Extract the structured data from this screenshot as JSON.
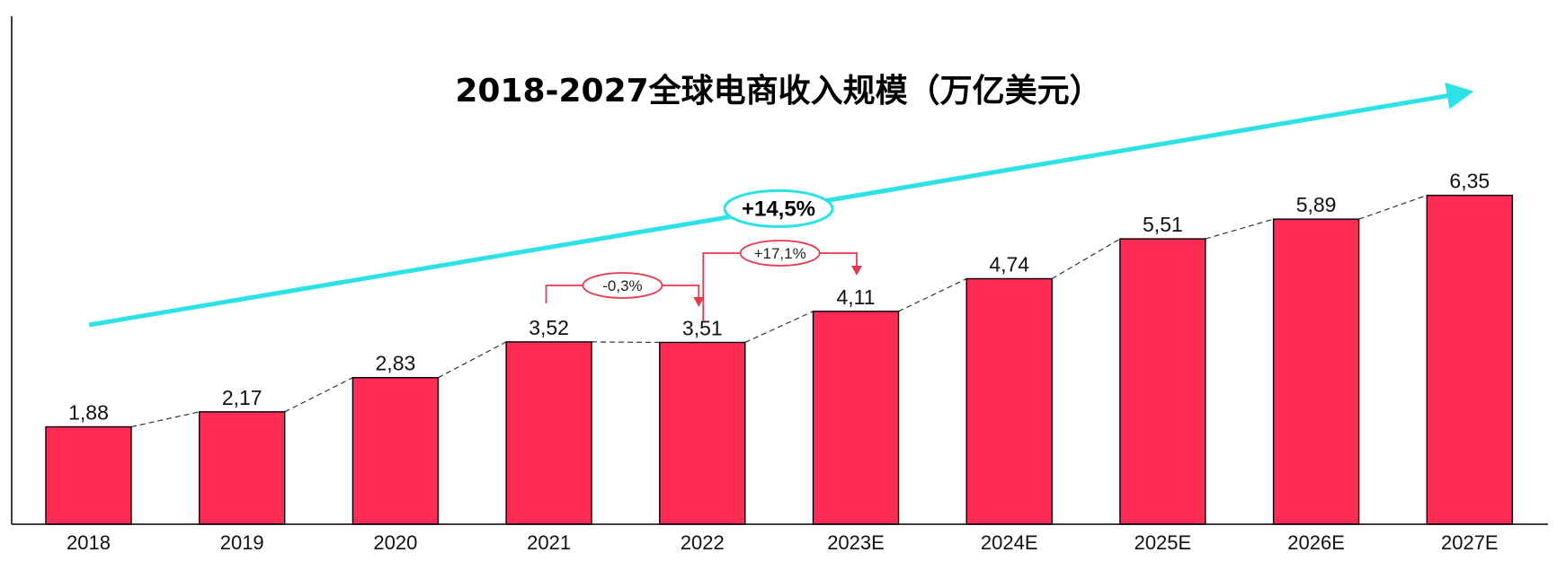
{
  "chart_data": {
    "type": "bar",
    "title": "2018-2027全球电商收入规模（万亿美元）",
    "categories": [
      "2018",
      "2019",
      "2020",
      "2021",
      "2022",
      "2023E",
      "2024E",
      "2025E",
      "2026E",
      "2027E"
    ],
    "values": [
      1.88,
      2.17,
      2.83,
      3.52,
      3.51,
      4.11,
      4.74,
      5.51,
      5.89,
      6.35
    ],
    "value_labels": [
      "1,88",
      "2,17",
      "2,83",
      "3,52",
      "3,51",
      "4,11",
      "4,74",
      "5,51",
      "5,89",
      "6,35"
    ],
    "xlabel": "",
    "ylabel": "",
    "ylim": [
      0,
      7
    ],
    "grid": false,
    "connector_line": "dashed",
    "cagr": {
      "label": "+14,5%",
      "from": "2018",
      "to": "2027E"
    },
    "annotations": [
      {
        "label": "-0,3%",
        "from": "2021",
        "to": "2022"
      },
      {
        "label": "+17,1%",
        "from": "2022",
        "to": "2023E"
      }
    ]
  },
  "colors": {
    "bar": "#ff2d55",
    "trend_arrow": "#2de2e6",
    "annotation": "#e8384f",
    "axis": "#000000"
  }
}
